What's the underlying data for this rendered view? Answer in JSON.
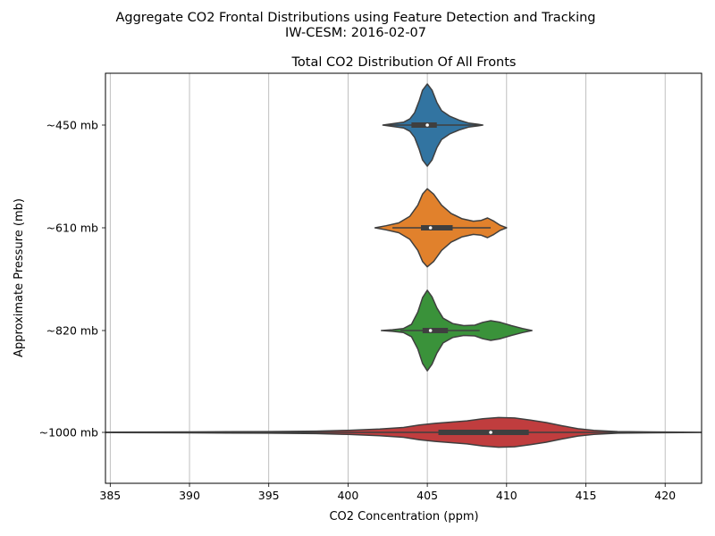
{
  "figure": {
    "suptitle_line1": "Aggregate CO2 Frontal Distributions using Feature Detection and Tracking",
    "suptitle_line2": "IW-CESM: 2016-02-07"
  },
  "chart_data": {
    "type": "violin",
    "orientation": "horizontal",
    "title": "Total CO2 Distribution Of All Fronts",
    "xlabel": "CO2 Concentration (ppm)",
    "ylabel": "Approximate Pressure (mb)",
    "xlim": [
      384.7,
      422.3
    ],
    "xticks": [
      385,
      390,
      395,
      400,
      405,
      410,
      415,
      420
    ],
    "grid": "x",
    "edge_color": "#3f3f3f",
    "categories": [
      "~450 mb",
      "~610 mb",
      "~820 mb",
      "~1000 mb"
    ],
    "series": [
      {
        "category": "~450 mb",
        "color": "#3274a1",
        "median": 405.0,
        "q1": 404.0,
        "q3": 405.6,
        "whisker_low": 402.3,
        "whisker_high": 408.4,
        "profile": [
          [
            402.2,
            0.0
          ],
          [
            402.9,
            0.04
          ],
          [
            403.5,
            0.07
          ],
          [
            403.9,
            0.15
          ],
          [
            404.2,
            0.3
          ],
          [
            404.5,
            0.6
          ],
          [
            404.7,
            0.85
          ],
          [
            405.0,
            1.0
          ],
          [
            405.3,
            0.85
          ],
          [
            405.6,
            0.55
          ],
          [
            405.9,
            0.35
          ],
          [
            406.4,
            0.22
          ],
          [
            407.0,
            0.12
          ],
          [
            407.6,
            0.05
          ],
          [
            408.2,
            0.02
          ],
          [
            408.5,
            0.0
          ]
        ]
      },
      {
        "category": "~610 mb",
        "color": "#e1812c",
        "median": 405.2,
        "q1": 404.6,
        "q3": 406.6,
        "whisker_low": 402.8,
        "whisker_high": 409.0,
        "profile": [
          [
            401.7,
            0.0
          ],
          [
            402.4,
            0.05
          ],
          [
            403.2,
            0.12
          ],
          [
            403.9,
            0.28
          ],
          [
            404.4,
            0.55
          ],
          [
            404.7,
            0.82
          ],
          [
            405.0,
            0.95
          ],
          [
            405.4,
            0.82
          ],
          [
            405.9,
            0.55
          ],
          [
            406.5,
            0.35
          ],
          [
            407.2,
            0.22
          ],
          [
            407.9,
            0.16
          ],
          [
            408.4,
            0.18
          ],
          [
            408.8,
            0.24
          ],
          [
            409.2,
            0.16
          ],
          [
            409.6,
            0.06
          ],
          [
            410.0,
            0.0
          ]
        ]
      },
      {
        "category": "~820 mb",
        "color": "#3a923a",
        "median": 405.2,
        "q1": 404.7,
        "q3": 406.3,
        "whisker_low": 403.3,
        "whisker_high": 408.3,
        "profile": [
          [
            402.1,
            0.0
          ],
          [
            402.8,
            0.02
          ],
          [
            403.5,
            0.05
          ],
          [
            404.0,
            0.15
          ],
          [
            404.4,
            0.45
          ],
          [
            404.7,
            0.8
          ],
          [
            405.0,
            0.98
          ],
          [
            405.3,
            0.82
          ],
          [
            405.6,
            0.55
          ],
          [
            406.0,
            0.3
          ],
          [
            406.6,
            0.17
          ],
          [
            407.3,
            0.12
          ],
          [
            408.0,
            0.13
          ],
          [
            408.5,
            0.2
          ],
          [
            409.0,
            0.24
          ],
          [
            409.6,
            0.2
          ],
          [
            410.3,
            0.12
          ],
          [
            411.0,
            0.05
          ],
          [
            411.6,
            0.0
          ]
        ]
      },
      {
        "category": "~1000 mb",
        "color": "#c03d3e",
        "median": 409.0,
        "q1": 405.7,
        "q3": 411.4,
        "whisker_low": 384.7,
        "whisker_high": 419.0,
        "profile": [
          [
            382.0,
            0.0
          ],
          [
            390.0,
            0.01
          ],
          [
            395.0,
            0.02
          ],
          [
            398.0,
            0.03
          ],
          [
            400.0,
            0.05
          ],
          [
            402.0,
            0.08
          ],
          [
            403.5,
            0.12
          ],
          [
            404.5,
            0.18
          ],
          [
            405.5,
            0.22
          ],
          [
            406.5,
            0.25
          ],
          [
            407.5,
            0.28
          ],
          [
            408.5,
            0.33
          ],
          [
            409.5,
            0.36
          ],
          [
            410.5,
            0.35
          ],
          [
            411.5,
            0.3
          ],
          [
            412.5,
            0.24
          ],
          [
            413.5,
            0.16
          ],
          [
            414.5,
            0.09
          ],
          [
            415.5,
            0.05
          ],
          [
            417.0,
            0.02
          ],
          [
            419.0,
            0.01
          ],
          [
            421.0,
            0.005
          ],
          [
            424.0,
            0.0
          ]
        ]
      }
    ]
  }
}
